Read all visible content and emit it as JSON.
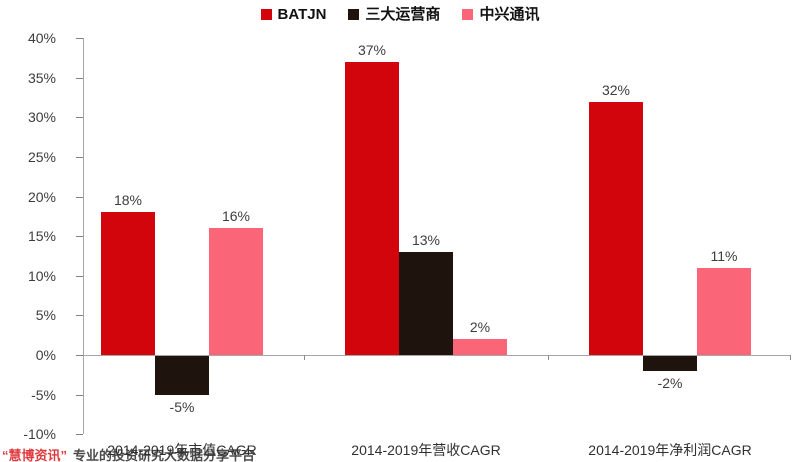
{
  "watermark": {
    "brand": "“慧博资讯”",
    "tagline": "专业的投资研究大数据分享平台",
    "brand_color": "#e03a3e"
  },
  "chart_data": {
    "type": "bar",
    "title": "",
    "categories": [
      "2014-2019年市值CAGR",
      "2014-2019年营收CAGR",
      "2014-2019年净利润CAGR"
    ],
    "series": [
      {
        "name": "BATJN",
        "color": "#d2040c",
        "values": [
          18,
          37,
          32
        ]
      },
      {
        "name": "三大运营商",
        "color": "#1f130d",
        "values": [
          -5,
          13,
          -2
        ]
      },
      {
        "name": "中兴通讯",
        "color": "#fa6577",
        "values": [
          16,
          2,
          11
        ]
      }
    ],
    "ylim": [
      -10,
      40
    ],
    "ytick_step": 5,
    "ytick_suffix": "%",
    "data_label_suffix": "%",
    "legend_position": "top",
    "grid": false,
    "axis_color": "#a6a6a6"
  }
}
